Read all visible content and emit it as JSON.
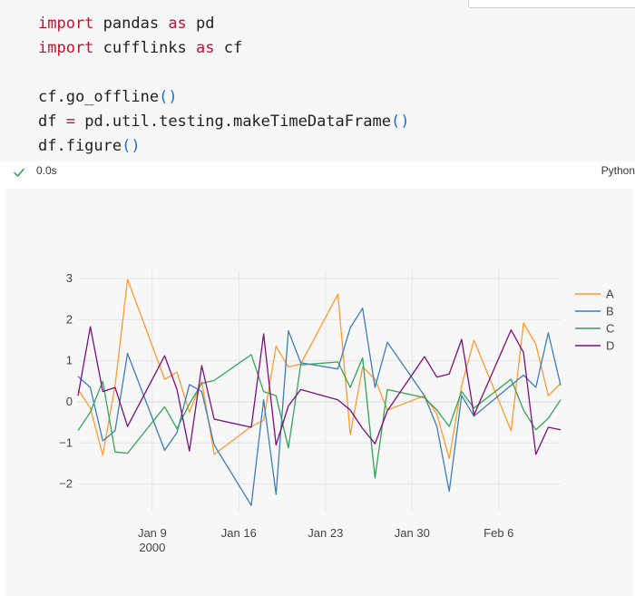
{
  "code": {
    "line1": {
      "kw1": "import",
      "mod": " pandas ",
      "kw2": "as",
      "alias": " pd"
    },
    "line2": {
      "kw1": "import",
      "mod": " cufflinks ",
      "kw2": "as",
      "alias": " cf"
    },
    "line4": {
      "call": "cf.go_offline",
      "parens": "()"
    },
    "line5": {
      "lhs": "df ",
      "eq": "=",
      "call": " pd.util.testing.makeTimeDataFrame",
      "parens": "()"
    },
    "line6": {
      "call": "df.figure",
      "parens": "()"
    }
  },
  "status": {
    "time": "0.0s",
    "language": "Python",
    "icon": "check-icon"
  },
  "colors": {
    "A": "#ff9a2e",
    "B": "#3d7eb9",
    "C": "#33a457",
    "D": "#7a0e7e"
  },
  "chart_data": {
    "type": "line",
    "title": "",
    "xlabel": "",
    "ylabel": "",
    "x_start": "2000-01-03",
    "x_end": "2000-02-11",
    "x_ticks": [
      {
        "date": "2000-01-09",
        "label": "Jan 9",
        "sublabel": "2000"
      },
      {
        "date": "2000-01-16",
        "label": "Jan 16",
        "sublabel": ""
      },
      {
        "date": "2000-01-23",
        "label": "Jan 23",
        "sublabel": ""
      },
      {
        "date": "2000-01-30",
        "label": "Jan 30",
        "sublabel": ""
      },
      {
        "date": "2000-02-06",
        "label": "Feb 6",
        "sublabel": ""
      }
    ],
    "y_ticks": [
      3,
      2,
      1,
      0,
      -1,
      -2
    ],
    "y_tick_labels": [
      "3",
      "2",
      "1",
      "0",
      "−1",
      "−2"
    ],
    "ylim": [
      -2.65,
      3.2
    ],
    "grid": true,
    "legend_position": "top-right",
    "series": [
      {
        "name": "A",
        "points": [
          [
            "2000-01-03",
            0.3
          ],
          [
            "2000-01-04",
            -0.15
          ],
          [
            "2000-01-05",
            -1.3
          ],
          [
            "2000-01-06",
            0.4
          ],
          [
            "2000-01-07",
            2.98
          ],
          [
            "2000-01-10",
            0.55
          ],
          [
            "2000-01-11",
            0.72
          ],
          [
            "2000-01-12",
            -0.25
          ],
          [
            "2000-01-13",
            0.5
          ],
          [
            "2000-01-14",
            -1.28
          ],
          [
            "2000-01-17",
            -0.6
          ],
          [
            "2000-01-18",
            -0.45
          ],
          [
            "2000-01-19",
            1.35
          ],
          [
            "2000-01-20",
            0.85
          ],
          [
            "2000-01-21",
            0.92
          ],
          [
            "2000-01-24",
            2.62
          ],
          [
            "2000-01-25",
            -0.8
          ],
          [
            "2000-01-26",
            0.85
          ],
          [
            "2000-01-27",
            0.55
          ],
          [
            "2000-01-28",
            -0.2
          ],
          [
            "2000-01-31",
            0.15
          ],
          [
            "2000-02-01",
            -0.3
          ],
          [
            "2000-02-02",
            -1.38
          ],
          [
            "2000-02-03",
            0.4
          ],
          [
            "2000-02-04",
            1.5
          ],
          [
            "2000-02-07",
            -0.7
          ],
          [
            "2000-02-08",
            1.92
          ],
          [
            "2000-02-09",
            1.4
          ],
          [
            "2000-02-10",
            0.15
          ],
          [
            "2000-02-11",
            0.45
          ]
        ]
      },
      {
        "name": "B",
        "points": [
          [
            "2000-01-03",
            0.62
          ],
          [
            "2000-01-04",
            0.35
          ],
          [
            "2000-01-05",
            -0.95
          ],
          [
            "2000-01-06",
            -0.7
          ],
          [
            "2000-01-07",
            1.18
          ],
          [
            "2000-01-10",
            -1.18
          ],
          [
            "2000-01-11",
            -0.75
          ],
          [
            "2000-01-12",
            0.42
          ],
          [
            "2000-01-13",
            0.25
          ],
          [
            "2000-01-14",
            -1.05
          ],
          [
            "2000-01-17",
            -2.52
          ],
          [
            "2000-01-18",
            0.05
          ],
          [
            "2000-01-19",
            -2.25
          ],
          [
            "2000-01-20",
            1.73
          ],
          [
            "2000-01-21",
            0.95
          ],
          [
            "2000-01-24",
            0.8
          ],
          [
            "2000-01-25",
            1.8
          ],
          [
            "2000-01-26",
            2.28
          ],
          [
            "2000-01-27",
            0.35
          ],
          [
            "2000-01-28",
            1.45
          ],
          [
            "2000-01-31",
            0.15
          ],
          [
            "2000-02-01",
            -0.6
          ],
          [
            "2000-02-02",
            -2.18
          ],
          [
            "2000-02-03",
            0.15
          ],
          [
            "2000-02-04",
            -0.35
          ],
          [
            "2000-02-07",
            0.4
          ],
          [
            "2000-02-08",
            0.65
          ],
          [
            "2000-02-09",
            0.35
          ],
          [
            "2000-02-10",
            1.68
          ],
          [
            "2000-02-11",
            0.4
          ]
        ]
      },
      {
        "name": "C",
        "points": [
          [
            "2000-01-03",
            -0.7
          ],
          [
            "2000-01-04",
            -0.25
          ],
          [
            "2000-01-05",
            0.5
          ],
          [
            "2000-01-06",
            -1.22
          ],
          [
            "2000-01-07",
            -1.25
          ],
          [
            "2000-01-10",
            -0.12
          ],
          [
            "2000-01-11",
            -0.65
          ],
          [
            "2000-01-12",
            -0.05
          ],
          [
            "2000-01-13",
            0.45
          ],
          [
            "2000-01-14",
            0.52
          ],
          [
            "2000-01-17",
            1.15
          ],
          [
            "2000-01-18",
            0.25
          ],
          [
            "2000-01-19",
            0.15
          ],
          [
            "2000-01-20",
            -1.12
          ],
          [
            "2000-01-21",
            0.9
          ],
          [
            "2000-01-24",
            0.97
          ],
          [
            "2000-01-25",
            0.35
          ],
          [
            "2000-01-26",
            1.07
          ],
          [
            "2000-01-27",
            -1.85
          ],
          [
            "2000-01-28",
            0.3
          ],
          [
            "2000-01-31",
            0.1
          ],
          [
            "2000-02-01",
            -0.2
          ],
          [
            "2000-02-02",
            -0.6
          ],
          [
            "2000-02-03",
            0.25
          ],
          [
            "2000-02-04",
            -0.15
          ],
          [
            "2000-02-07",
            0.55
          ],
          [
            "2000-02-08",
            -0.2
          ],
          [
            "2000-02-09",
            -0.68
          ],
          [
            "2000-02-10",
            -0.4
          ],
          [
            "2000-02-11",
            0.05
          ]
        ]
      },
      {
        "name": "D",
        "points": [
          [
            "2000-01-03",
            0.15
          ],
          [
            "2000-01-04",
            1.83
          ],
          [
            "2000-01-05",
            0.25
          ],
          [
            "2000-01-06",
            0.35
          ],
          [
            "2000-01-07",
            -0.6
          ],
          [
            "2000-01-10",
            1.12
          ],
          [
            "2000-01-11",
            0.3
          ],
          [
            "2000-01-12",
            -1.2
          ],
          [
            "2000-01-13",
            0.88
          ],
          [
            "2000-01-14",
            -0.42
          ],
          [
            "2000-01-17",
            -0.62
          ],
          [
            "2000-01-18",
            1.65
          ],
          [
            "2000-01-19",
            -1.05
          ],
          [
            "2000-01-20",
            -0.1
          ],
          [
            "2000-01-21",
            0.3
          ],
          [
            "2000-01-24",
            0.05
          ],
          [
            "2000-01-25",
            -0.2
          ],
          [
            "2000-01-26",
            -0.65
          ],
          [
            "2000-01-27",
            -1.02
          ],
          [
            "2000-01-28",
            -0.22
          ],
          [
            "2000-01-31",
            1.1
          ],
          [
            "2000-02-01",
            0.6
          ],
          [
            "2000-02-02",
            0.68
          ],
          [
            "2000-02-03",
            1.52
          ],
          [
            "2000-02-04",
            -0.32
          ],
          [
            "2000-02-07",
            1.75
          ],
          [
            "2000-02-08",
            1.2
          ],
          [
            "2000-02-09",
            -1.28
          ],
          [
            "2000-02-10",
            -0.62
          ],
          [
            "2000-02-11",
            -0.68
          ]
        ]
      }
    ]
  }
}
